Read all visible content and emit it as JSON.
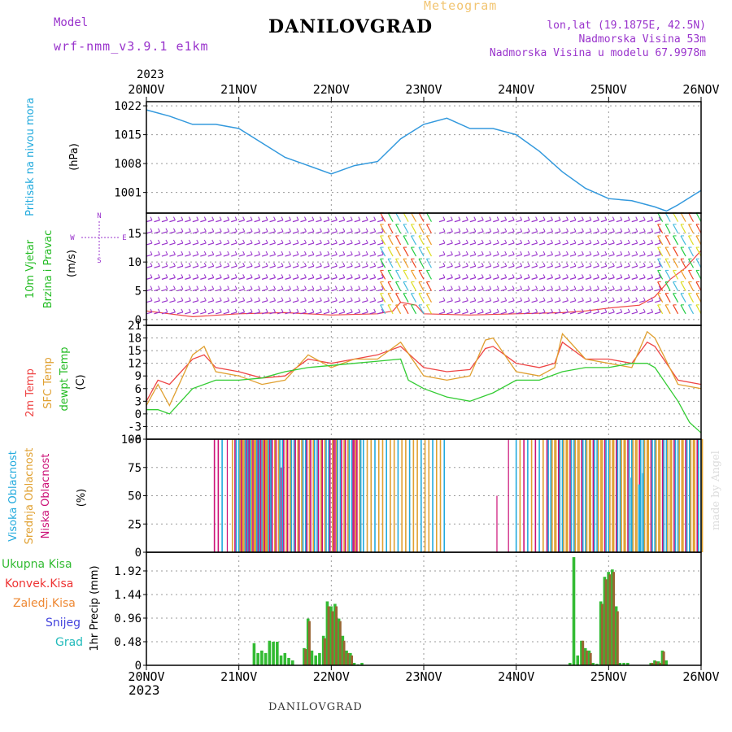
{
  "header": {
    "title": "DANILOVGRAD",
    "subtitle": "Meteogram",
    "model_label": "Model",
    "model_name": "wrf-nmm_v3.9.1 e1km",
    "location_lines": [
      "lon,lat (19.1875E, 42.5N)",
      "Nadmorska Visina 53m",
      "Nadmorska Visina u modelu 67.9978m"
    ],
    "year_top": "2023",
    "year_bottom": "2023",
    "footer": "DANILOVGRAD",
    "credit": "made by Angel"
  },
  "colors": {
    "pressure": "#3399dd",
    "wind_purple": "#9933cc",
    "temp_2m": "#ee4444",
    "temp_sfc": "#e0a030",
    "dewpoint": "#33cc33",
    "cloud_high": "#22aadd",
    "cloud_mid": "#e0a030",
    "cloud_low": "#cc1177",
    "precip_total": "#33bb33",
    "precip_conv": "#ee3333",
    "precip_strat": "#ee8833",
    "precip_snow": "#4444dd",
    "precip_hail": "#22bbbb",
    "grid": "#9a9a9a"
  },
  "chart_data": [
    {
      "type": "line",
      "panel": "pressure",
      "ylabel": [
        "Pritisak na nivou mora",
        "(hPa)"
      ],
      "yticks": [
        "1022",
        "1015",
        "1008",
        "1001"
      ],
      "ylim": [
        996,
        1023
      ],
      "xlim": [
        0,
        144
      ],
      "x_tick_labels": [
        "20NOV",
        "21NOV",
        "22NOV",
        "23NOV",
        "24NOV",
        "25NOV",
        "26NOV"
      ],
      "x": [
        0,
        6,
        12,
        18,
        24,
        30,
        36,
        42,
        48,
        54,
        60,
        66,
        72,
        78,
        84,
        90,
        96,
        102,
        108,
        114,
        120,
        126,
        132,
        135,
        138,
        144
      ],
      "values": [
        1021,
        1019.5,
        1017.5,
        1017.5,
        1016.5,
        1013,
        1009.5,
        1007.5,
        1005.5,
        1007.5,
        1008.5,
        1014,
        1017.5,
        1019,
        1016.5,
        1016.5,
        1015,
        1011,
        1006,
        1002,
        999.5,
        999,
        997.5,
        996.5,
        998,
        1001.5
      ]
    },
    {
      "type": "line",
      "panel": "wind",
      "ylabel": [
        "10m Vjetar",
        "Brzina i Pravac",
        "(m/s)"
      ],
      "direction_legend": [
        "W",
        "E",
        "N",
        "S"
      ],
      "yticks": [
        "15",
        "10",
        "5",
        "0"
      ],
      "ylim": [
        -1,
        18.5
      ],
      "series": [
        {
          "name": "10m Vjetar",
          "x": [
            0,
            12,
            24,
            36,
            48,
            60,
            64,
            66,
            70,
            72,
            84,
            96,
            108,
            114,
            120,
            128,
            132,
            136,
            140,
            144
          ],
          "values": [
            1.5,
            0.5,
            1.0,
            1.2,
            0.8,
            1.0,
            1.5,
            3.0,
            2.5,
            1.0,
            0.8,
            1.0,
            1.2,
            1.5,
            2.0,
            2.5,
            4.0,
            7.0,
            9.0,
            12.0
          ]
        }
      ],
      "barb_rows": [
        1,
        3,
        5,
        7,
        9,
        11,
        13,
        15,
        17
      ],
      "colored_windows": [
        [
          62,
          74
        ],
        [
          133,
          144
        ]
      ]
    },
    {
      "type": "line",
      "panel": "temperature",
      "ylabel": [
        "2m Temp",
        "SFC Temp",
        "dewpt Temp",
        "(C)"
      ],
      "yticks": [
        "21",
        "18",
        "15",
        "12",
        "9",
        "6",
        "3",
        "0",
        "-3",
        "-6"
      ],
      "ylim": [
        -6,
        21
      ],
      "series": [
        {
          "name": "2m Temp",
          "x": [
            0,
            3,
            6,
            12,
            15,
            18,
            24,
            30,
            36,
            42,
            48,
            54,
            60,
            66,
            72,
            78,
            84,
            88,
            90,
            96,
            102,
            106,
            108,
            114,
            120,
            126,
            130,
            132,
            138,
            144
          ],
          "values": [
            3,
            8,
            7,
            13,
            14,
            11,
            10,
            8.5,
            9,
            13,
            12,
            13,
            14,
            16,
            11,
            10,
            10.5,
            15.5,
            16,
            12,
            11,
            12,
            17,
            13,
            13,
            12,
            17,
            16,
            8,
            7
          ]
        },
        {
          "name": "SFC Temp",
          "x": [
            0,
            3,
            6,
            12,
            15,
            18,
            24,
            30,
            36,
            42,
            48,
            54,
            60,
            66,
            72,
            78,
            84,
            88,
            90,
            96,
            102,
            106,
            108,
            114,
            120,
            126,
            130,
            132,
            138,
            144
          ],
          "values": [
            2,
            7,
            2,
            14,
            16,
            10,
            9,
            7,
            8,
            14,
            11,
            13,
            13,
            17,
            9,
            8,
            9,
            17.5,
            18,
            10,
            9,
            11,
            19,
            13,
            12,
            11,
            19.5,
            18,
            7,
            6
          ]
        },
        {
          "name": "dewpt Temp",
          "x": [
            0,
            3,
            6,
            12,
            18,
            24,
            30,
            36,
            42,
            48,
            54,
            60,
            66,
            68,
            72,
            78,
            84,
            90,
            96,
            102,
            108,
            114,
            120,
            126,
            130,
            132,
            138,
            141,
            144
          ],
          "values": [
            1,
            1,
            0,
            6,
            8,
            8,
            8.5,
            10,
            11,
            11.5,
            12,
            12.5,
            13,
            8,
            6,
            4,
            3,
            5,
            8,
            8,
            10,
            11,
            11,
            12,
            12,
            11,
            3,
            -2,
            -4.5
          ]
        }
      ]
    },
    {
      "type": "bar",
      "panel": "clouds",
      "ylabel": [
        "Visoka Oblacnost",
        "Srednja Oblacnost",
        "Niska Oblacnost",
        "(%)"
      ],
      "yticks": [
        "100",
        "75",
        "50",
        "25",
        "0"
      ],
      "ylim": [
        0,
        100
      ],
      "series": [
        {
          "name": "Visoka Oblacnost",
          "windows": [
            [
              23,
              32
            ],
            [
              96,
              144
            ]
          ],
          "value": 100,
          "partial": [
            [
              126,
              66
            ],
            [
              128,
              60
            ],
            [
              129,
              70
            ]
          ]
        },
        {
          "name": "Srednja Oblacnost",
          "windows": [
            [
              22,
              36
            ],
            [
              28,
              78
            ],
            [
              104,
              145
            ]
          ],
          "value": 100
        },
        {
          "name": "Niska Oblacnost",
          "windows": [
            [
              17,
              20
            ],
            [
              24,
              56
            ]
          ],
          "value": 100
        }
      ],
      "sparse_ticks": [
        [
          21,
          100
        ],
        [
          35,
          75
        ],
        [
          49,
          100
        ],
        [
          54,
          100
        ],
        [
          91,
          50
        ],
        [
          94,
          100
        ],
        [
          104,
          50
        ],
        [
          122,
          50
        ]
      ]
    },
    {
      "type": "bar",
      "panel": "precip",
      "ylabel": [
        "1hr Precip (mm)"
      ],
      "legend": [
        "Ukupna Kisa",
        "Konvek.Kisa",
        "Zaledj.Kisa",
        "Snijeg",
        "Grad"
      ],
      "yticks": [
        "1.92",
        "1.44",
        "0.96",
        "0.48",
        "0"
      ],
      "ylim": [
        0,
        2.3
      ],
      "series": [
        {
          "name": "Ukupna Kisa",
          "x": [
            28,
            29,
            30,
            31,
            32,
            33,
            34,
            35,
            36,
            37,
            38,
            41,
            42,
            43,
            44,
            45,
            46,
            47,
            48,
            49,
            50,
            51,
            52,
            53,
            54,
            55,
            56,
            110,
            111,
            112,
            113,
            114,
            115,
            116,
            117,
            118,
            119,
            120,
            121,
            122,
            123,
            124,
            125,
            131,
            132,
            133,
            134,
            135
          ],
          "values": [
            0.45,
            0.25,
            0.3,
            0.25,
            0.5,
            0.48,
            0.48,
            0.2,
            0.25,
            0.15,
            0.1,
            0.35,
            0.95,
            0.3,
            0.2,
            0.25,
            0.6,
            1.3,
            1.2,
            1.25,
            0.95,
            0.6,
            0.3,
            0.25,
            0.05,
            0.02,
            0.05,
            0.05,
            2.2,
            0.2,
            0.5,
            0.35,
            0.3,
            0.05,
            0.03,
            1.3,
            1.8,
            1.9,
            1.95,
            1.2,
            0.05,
            0.05,
            0.05,
            0.05,
            0.1,
            0.08,
            0.3,
            0.1
          ]
        },
        {
          "name": "Konvek.Kisa",
          "x": [
            41,
            42,
            46,
            47,
            48,
            49,
            50,
            51,
            52,
            53,
            113,
            114,
            115,
            118,
            119,
            120,
            121,
            122,
            131,
            132,
            133,
            134
          ],
          "values": [
            0.33,
            0.9,
            0.55,
            1.2,
            1.1,
            1.2,
            0.9,
            0.5,
            0.25,
            0.2,
            0.5,
            0.3,
            0.25,
            1.25,
            1.75,
            1.85,
            1.9,
            1.1,
            0.05,
            0.08,
            0.05,
            0.28
          ]
        },
        {
          "name": "Zaledj.Kisa",
          "x": [],
          "values": []
        },
        {
          "name": "Snijeg",
          "x": [],
          "values": []
        },
        {
          "name": "Grad",
          "x": [],
          "values": []
        }
      ]
    }
  ]
}
